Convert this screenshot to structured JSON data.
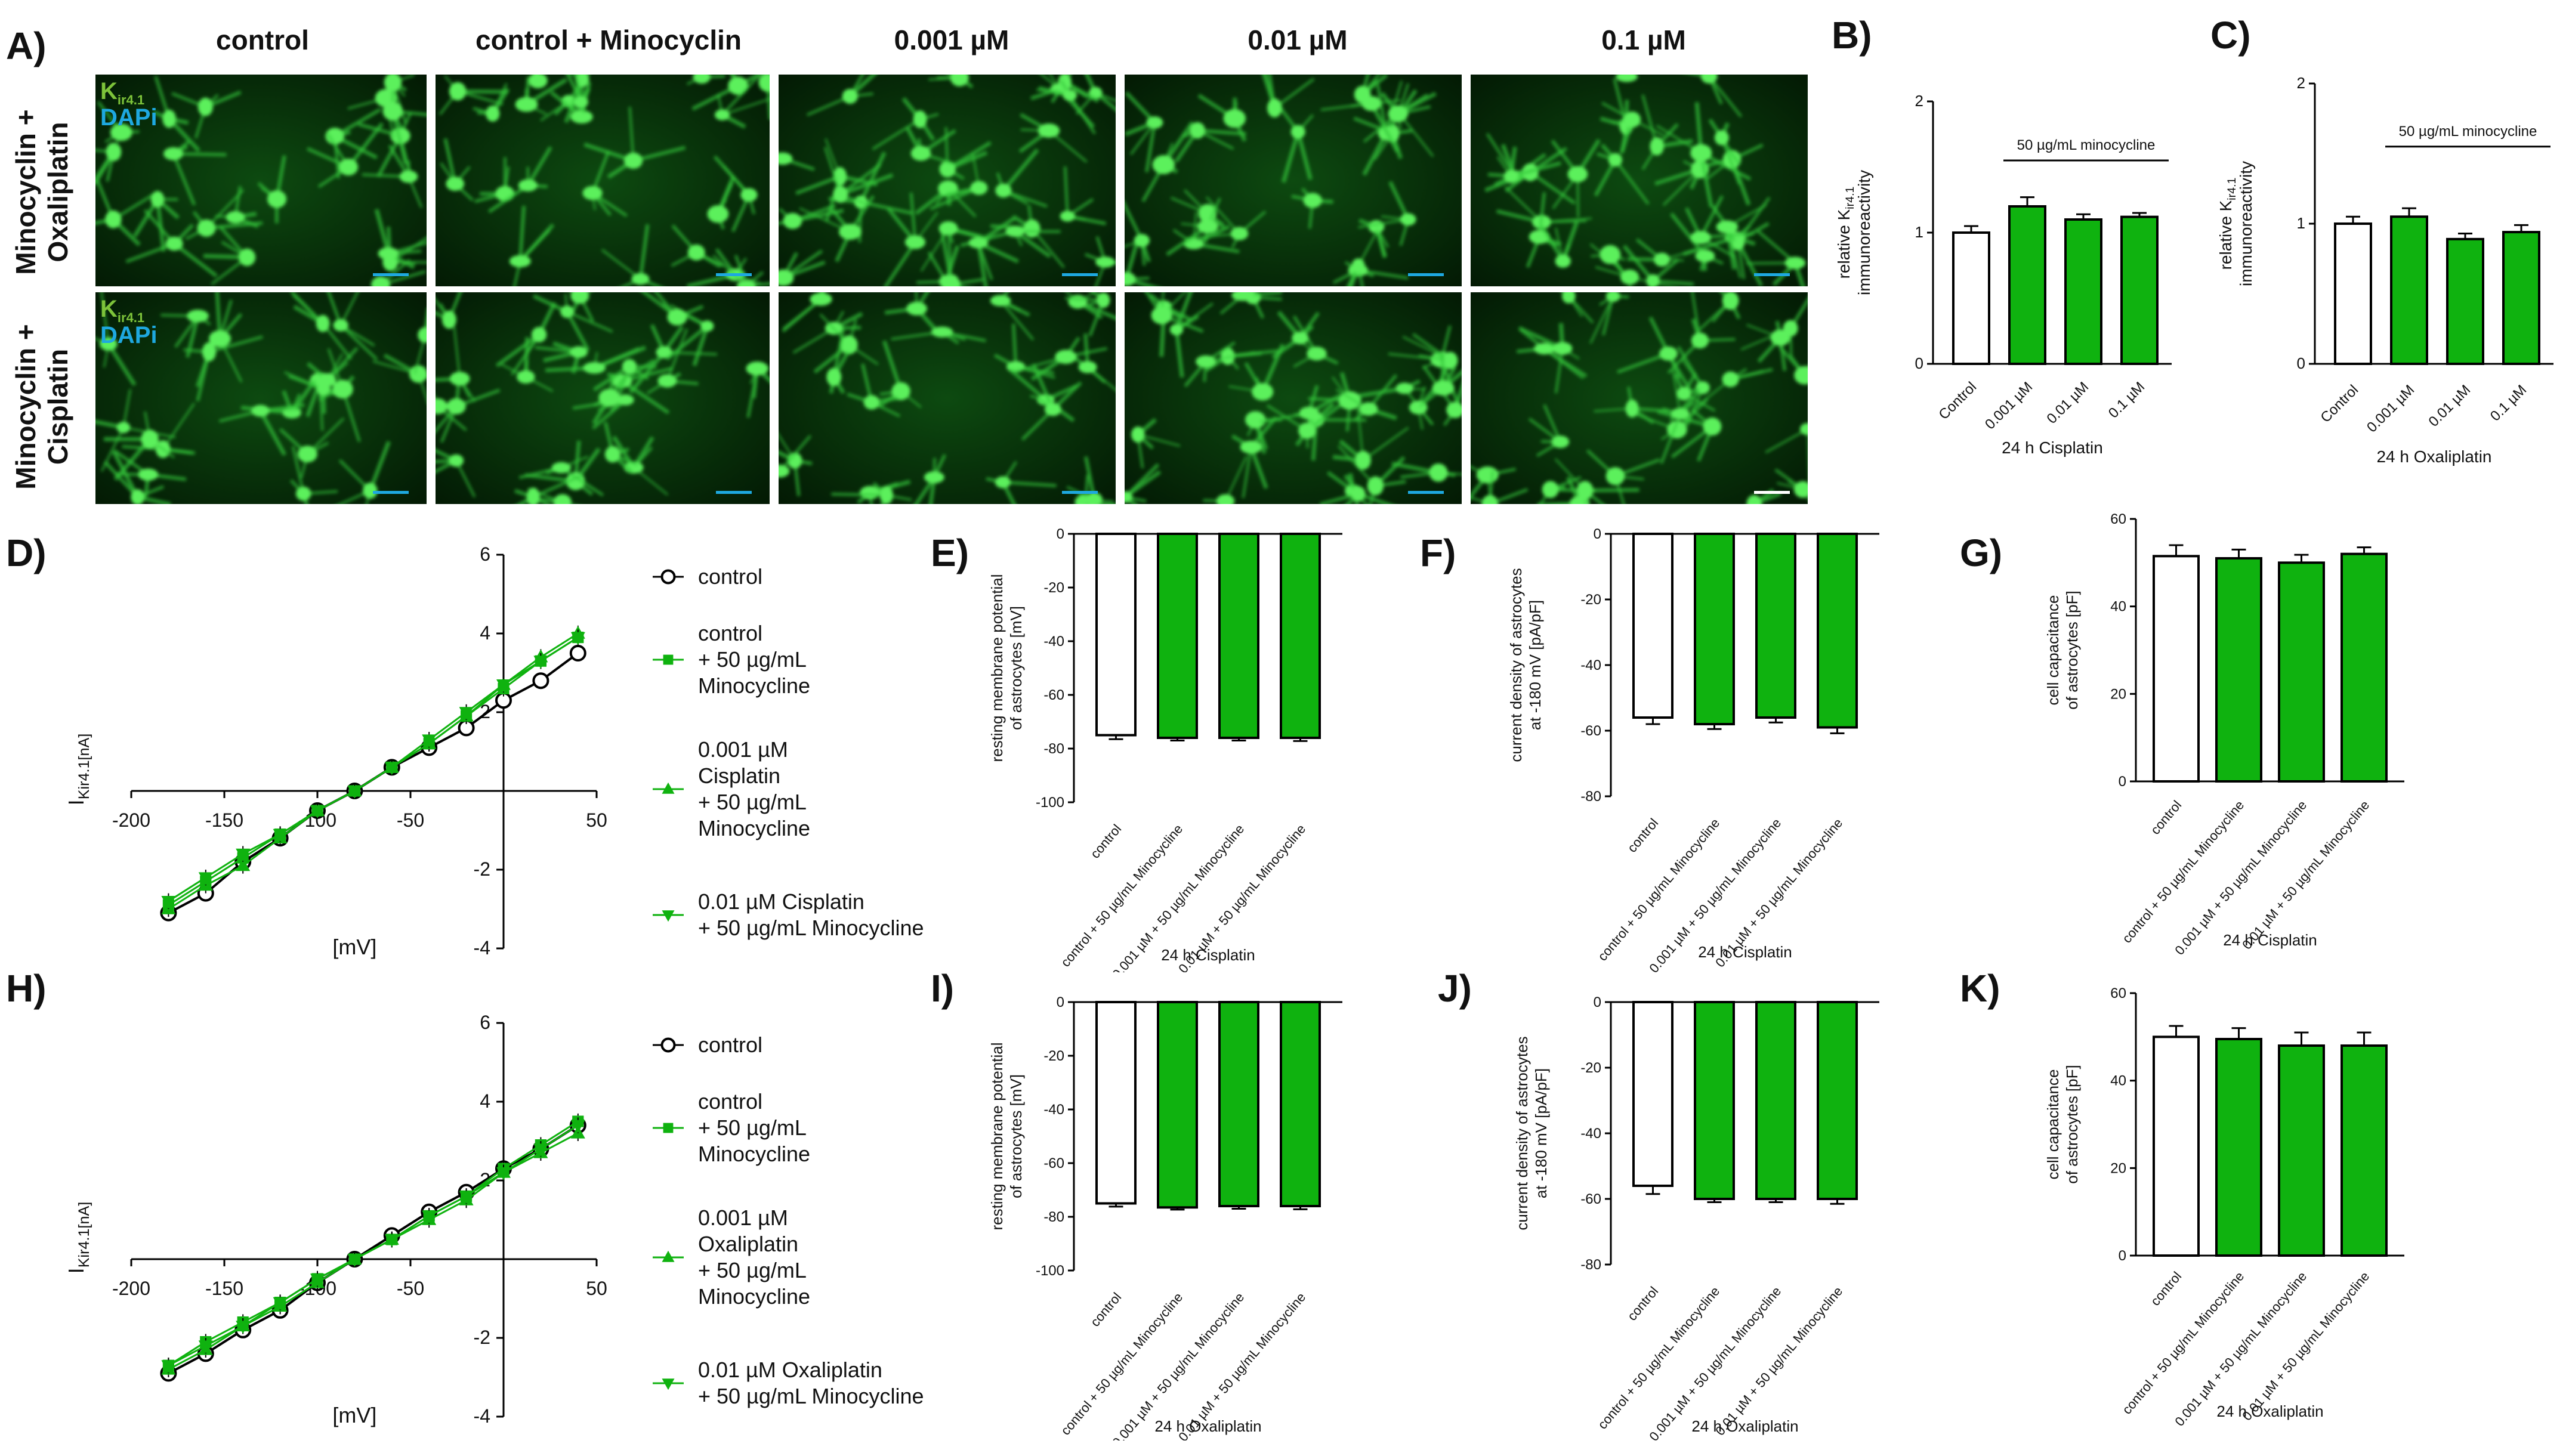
{
  "panels": {
    "A": "A)",
    "B": "B)",
    "C": "C)",
    "D": "D)",
    "E": "E)",
    "F": "F)",
    "G": "G)",
    "H": "H)",
    "I": "I)",
    "J": "J)",
    "K": "K)"
  },
  "micrographs": {
    "columns": [
      "control",
      "control + Minocyclin",
      "0.001 µM",
      "0.01 µM",
      "0.1 µM"
    ],
    "rows": [
      "Minocyclin +\nOxaliplatin",
      "Minocyclin +\nCisplatin"
    ],
    "stain_k": "K",
    "stain_k_sub": "ir4.1",
    "stain_dapi": "DAPi"
  },
  "iv_legend_cisplatin": [
    {
      "text": "control",
      "marker": "circle"
    },
    {
      "text": "control\n+ 50 µg/mL\nMinocycline",
      "marker": "square"
    },
    {
      "text": "0.001 µM\nCisplatin\n+ 50 µg/mL\nMinocycline",
      "marker": "triangle"
    },
    {
      "text": "0.01 µM Cisplatin\n+ 50 µg/mL Minocycline",
      "marker": "triangle-down"
    }
  ],
  "iv_legend_oxaliplatin": [
    {
      "text": "control",
      "marker": "circle"
    },
    {
      "text": "control\n+ 50 µg/mL\nMinocycline",
      "marker": "square"
    },
    {
      "text": "0.001 µM\nOxaliplatin\n+ 50 µg/mL\nMinocycline",
      "marker": "triangle"
    },
    {
      "text": "0.01 µM Oxaliplatin\n+ 50 µg/mL Minocycline",
      "marker": "triangle-down"
    }
  ],
  "colors": {
    "green": "#0fb20f",
    "black": "#000000",
    "white": "#ffffff",
    "scale_cyan": "#1ea8e0"
  },
  "chart_data": [
    {
      "id": "B",
      "type": "bar",
      "categories": [
        "Control",
        "0.001 µM",
        "0.01 µM",
        "0.1 µM"
      ],
      "values": [
        1.0,
        1.2,
        1.1,
        1.12
      ],
      "errors": [
        0.05,
        0.07,
        0.04,
        0.03
      ],
      "ylabel": "relative K_ir4.1 immunoreactivity",
      "xlabel": "24 h Cisplatin",
      "annotation": "50 µg/mL minocycline",
      "ylim": [
        0,
        2
      ],
      "yticks": [
        0,
        1,
        2
      ]
    },
    {
      "id": "C",
      "type": "bar",
      "categories": [
        "Control",
        "0.001 µM",
        "0.01 µM",
        "0.1 µM"
      ],
      "values": [
        1.0,
        1.05,
        0.89,
        0.94
      ],
      "errors": [
        0.05,
        0.06,
        0.04,
        0.05
      ],
      "ylabel": "relative K_ir4.1 immunoreactivity",
      "xlabel": "24 h Oxaliplatin",
      "annotation": "50 µg/mL minocycline",
      "ylim": [
        0,
        2
      ],
      "yticks": [
        0,
        1,
        2
      ]
    },
    {
      "id": "D",
      "type": "line",
      "xlabel": "[mV]",
      "ylabel": "I_Kir4.1[nA]",
      "xlim": [
        -200,
        50
      ],
      "ylim": [
        -4,
        6
      ],
      "xticks": [
        -200,
        -150,
        -100,
        -50,
        50
      ],
      "yticks": [
        -4,
        -2,
        2,
        4,
        6
      ],
      "x": [
        -180,
        -160,
        -140,
        -120,
        -100,
        -80,
        -60,
        -40,
        -20,
        0,
        20,
        40
      ],
      "series": [
        {
          "name": "control",
          "marker": "circle",
          "values": [
            -3.1,
            -2.6,
            -1.8,
            -1.2,
            -0.5,
            0.0,
            0.6,
            1.1,
            1.6,
            2.3,
            2.8,
            3.5
          ]
        },
        {
          "name": "control + 50 µg/mL Minocycline",
          "marker": "square",
          "values": [
            -2.9,
            -2.3,
            -1.7,
            -1.1,
            -0.5,
            0.0,
            0.6,
            1.2,
            1.9,
            2.6,
            3.3,
            3.9
          ]
        },
        {
          "name": "0.001 µM Cisplatin + 50 µg/mL Minocycline",
          "marker": "triangle",
          "values": [
            -3.0,
            -2.4,
            -1.9,
            -1.2,
            -0.5,
            0.0,
            0.6,
            1.2,
            1.9,
            2.7,
            3.4,
            4.0
          ]
        },
        {
          "name": "0.01 µM Cisplatin + 50 µg/mL Minocycline",
          "marker": "triangle-down",
          "values": [
            -2.8,
            -2.2,
            -1.6,
            -1.1,
            -0.5,
            0.0,
            0.6,
            1.3,
            2.0,
            2.7,
            3.3,
            3.9
          ]
        }
      ]
    },
    {
      "id": "E",
      "type": "bar",
      "categories": [
        "control",
        "control + 50 µg/mL\nMinocycline",
        "0.001 µM + 50 µg/mL\nMinocycline",
        "0.01 µM + 50 µg/mL\nMinocycline"
      ],
      "values": [
        -75,
        -76,
        -76,
        -76
      ],
      "errors": [
        1.5,
        1.0,
        1.0,
        1.2
      ],
      "ylabel": "resting membrane potential\nof astrocytes [mV]",
      "xlabel": "24 h Cisplatin",
      "ylim": [
        -100,
        0
      ],
      "yticks": [
        0,
        -20,
        -40,
        -60,
        -80,
        -100
      ]
    },
    {
      "id": "F",
      "type": "bar",
      "categories": [
        "control",
        "control + 50 µg/mL\nMinocycline",
        "0.001 µM + 50 µg/mL\nMinocycline",
        "0.01 µM + 50 µg/mL\nMinocycline"
      ],
      "values": [
        -56,
        -58,
        -56,
        -59
      ],
      "errors": [
        2.0,
        1.5,
        1.5,
        1.8
      ],
      "ylabel": "current density of astrocytes\nat -180 mV [pA/pF]",
      "xlabel": "24 h Cisplatin",
      "ylim": [
        -80,
        0
      ],
      "yticks": [
        0,
        -20,
        -40,
        -60,
        -80
      ]
    },
    {
      "id": "G",
      "type": "bar",
      "categories": [
        "control",
        "control + 50 µg/mL\nMinocycline",
        "0.001 µM + 50 µg/mL\nMinocycline",
        "0.01 µM + 50 µg/mL\nMinocycline"
      ],
      "values": [
        51.5,
        51,
        50,
        52
      ],
      "errors": [
        2.5,
        2.0,
        1.8,
        1.5
      ],
      "ylabel": "cell capacitance\nof astrocytes [pF]",
      "xlabel": "24 h Cisplatin",
      "ylim": [
        0,
        60
      ],
      "yticks": [
        0,
        20,
        40,
        60
      ]
    },
    {
      "id": "H",
      "type": "line",
      "xlabel": "[mV]",
      "ylabel": "I_Kir4.1[nA]",
      "xlim": [
        -200,
        50
      ],
      "ylim": [
        -4,
        6
      ],
      "xticks": [
        -200,
        -150,
        -100,
        -50,
        50
      ],
      "yticks": [
        -4,
        -2,
        2,
        4,
        6
      ],
      "x": [
        -180,
        -160,
        -140,
        -120,
        -100,
        -80,
        -60,
        -40,
        -20,
        0,
        20,
        40
      ],
      "series": [
        {
          "name": "control",
          "marker": "circle",
          "values": [
            -2.9,
            -2.4,
            -1.8,
            -1.3,
            -0.6,
            0.0,
            0.6,
            1.2,
            1.7,
            2.3,
            2.8,
            3.4
          ]
        },
        {
          "name": "control + 50 µg/mL Minocycline",
          "marker": "square",
          "values": [
            -2.7,
            -2.1,
            -1.6,
            -1.1,
            -0.5,
            0.0,
            0.5,
            1.1,
            1.6,
            2.3,
            2.9,
            3.5
          ]
        },
        {
          "name": "0.001 µM Oxaliplatin + 50 µg/mL Minocycline",
          "marker": "triangle",
          "values": [
            -2.8,
            -2.3,
            -1.7,
            -1.2,
            -0.6,
            0.0,
            0.5,
            1.0,
            1.5,
            2.2,
            2.7,
            3.2
          ]
        },
        {
          "name": "0.01 µM Oxaliplatin + 50 µg/mL Minocycline",
          "marker": "triangle-down",
          "values": [
            -2.7,
            -2.2,
            -1.7,
            -1.1,
            -0.5,
            0.0,
            0.5,
            1.1,
            1.6,
            2.2,
            2.8,
            3.4
          ]
        }
      ]
    },
    {
      "id": "I",
      "type": "bar",
      "categories": [
        "control",
        "control + 50 µg/mL\nMinocycline",
        "0.001 µM + 50 µg/mL\nMinocycline",
        "0.01 µM + 50 µg/mL\nMinocycline"
      ],
      "values": [
        -75,
        -76.5,
        -76,
        -76
      ],
      "errors": [
        1.2,
        0.8,
        1.0,
        1.2
      ],
      "ylabel": "resting membrane potential\nof astrocytes [mV]",
      "xlabel": "24 h Oxaliplatin",
      "ylim": [
        -100,
        0
      ],
      "yticks": [
        0,
        -20,
        -40,
        -60,
        -80,
        -100
      ]
    },
    {
      "id": "J",
      "type": "bar",
      "categories": [
        "control",
        "control + 50 µg/mL\nMinocycline",
        "0.001 µM + 50 µg/mL\nMinocycline",
        "0.01 µM + 50 µg/mL\nMinocycline"
      ],
      "values": [
        -56,
        -60,
        -60,
        -60
      ],
      "errors": [
        2.5,
        1.0,
        1.0,
        1.5
      ],
      "ylabel": "current density of astrocytes\nat -180 mV [pA/pF]",
      "xlabel": "24 h Oxaliplatin",
      "ylim": [
        -80,
        0
      ],
      "yticks": [
        0,
        -20,
        -40,
        -60,
        -80
      ]
    },
    {
      "id": "K",
      "type": "bar",
      "categories": [
        "control",
        "control + 50 µg/mL\nMinocycline",
        "0.001 µM + 50 µg/mL\nMinocycline",
        "0.01 µM + 50 µg/mL\nMinocycline"
      ],
      "values": [
        50,
        49.5,
        48,
        48
      ],
      "errors": [
        2.5,
        2.5,
        3.0,
        3.0
      ],
      "ylabel": "cell capacitance\nof astrocytes [pF]",
      "xlabel": "24 h Oxaliplatin",
      "ylim": [
        0,
        60
      ],
      "yticks": [
        0,
        20,
        40,
        60
      ]
    }
  ]
}
